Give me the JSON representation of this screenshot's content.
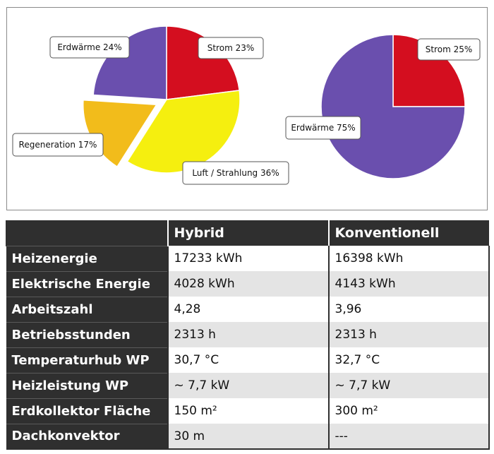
{
  "chart_data": [
    {
      "type": "pie",
      "slices": [
        {
          "label": "Strom 23%",
          "value": 23,
          "color": "#d40e1f"
        },
        {
          "label": "Luft / Strahlung 36%",
          "value": 36,
          "color": "#f5ef0f"
        },
        {
          "label": "Regeneration 17%",
          "value": 17,
          "color": "#f2bc1b",
          "exploded": true
        },
        {
          "label": "Erdwärme 24%",
          "value": 24,
          "color": "#6a4fae"
        }
      ]
    },
    {
      "type": "pie",
      "slices": [
        {
          "label": "Strom 25%",
          "value": 25,
          "color": "#d40e1f"
        },
        {
          "label": "Erdwärme 75%",
          "value": 75,
          "color": "#6a4fae"
        }
      ]
    }
  ],
  "table": {
    "headers": [
      "",
      "Hybrid",
      "Konventionell"
    ],
    "rows": [
      {
        "label": "Heizenergie",
        "hybrid": "17233 kWh",
        "konv": "16398 kWh"
      },
      {
        "label": "Elektrische Energie",
        "hybrid": "4028 kWh",
        "konv": "4143 kWh"
      },
      {
        "label": "Arbeitszahl",
        "hybrid": "4,28",
        "konv": "3,96"
      },
      {
        "label": "Betriebsstunden",
        "hybrid": "2313 h",
        "konv": "2313 h"
      },
      {
        "label": "Temperaturhub WP",
        "hybrid": "30,7 °C",
        "konv": "32,7 °C"
      },
      {
        "label": "Heizleistung WP",
        "hybrid": "~ 7,7 kW",
        "konv": "~ 7,7 kW"
      },
      {
        "label": "Erdkollektor Fläche",
        "hybrid": "150 m²",
        "konv": "300 m²"
      },
      {
        "label": "Dachkonvektor",
        "hybrid": "30 m",
        "konv": "---"
      }
    ]
  }
}
